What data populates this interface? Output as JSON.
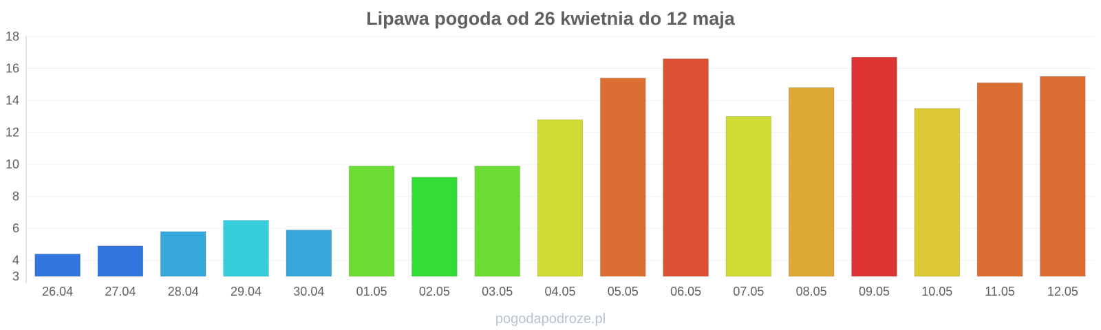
{
  "chart_data": {
    "type": "bar",
    "title": "Lipawa pogoda od 26 kwietnia do 12 maja",
    "xlabel": "",
    "ylabel": "",
    "ylim": [
      3,
      18
    ],
    "yticks": [
      3,
      4,
      6,
      8,
      10,
      12,
      14,
      16,
      18
    ],
    "grid": true,
    "categories": [
      "26.04",
      "27.04",
      "28.04",
      "29.04",
      "30.04",
      "01.05",
      "02.05",
      "03.05",
      "04.05",
      "05.05",
      "06.05",
      "07.05",
      "08.05",
      "09.05",
      "10.05",
      "11.05",
      "12.05"
    ],
    "values": [
      4.4,
      4.9,
      5.8,
      6.5,
      5.9,
      9.9,
      9.2,
      9.9,
      12.8,
      15.4,
      16.6,
      13.0,
      14.8,
      16.7,
      13.5,
      15.1,
      15.5
    ],
    "colors": [
      "#3275dc",
      "#3275dc",
      "#36a7db",
      "#36cedc",
      "#36a7db",
      "#6ddc36",
      "#33dd36",
      "#6ddc36",
      "#cedc33",
      "#dd6e33",
      "#dd5033",
      "#cedc33",
      "#dda733",
      "#dd3333",
      "#dcc933",
      "#dd6e33",
      "#dd6e33"
    ]
  },
  "watermark": "pogodapodroze.pl"
}
